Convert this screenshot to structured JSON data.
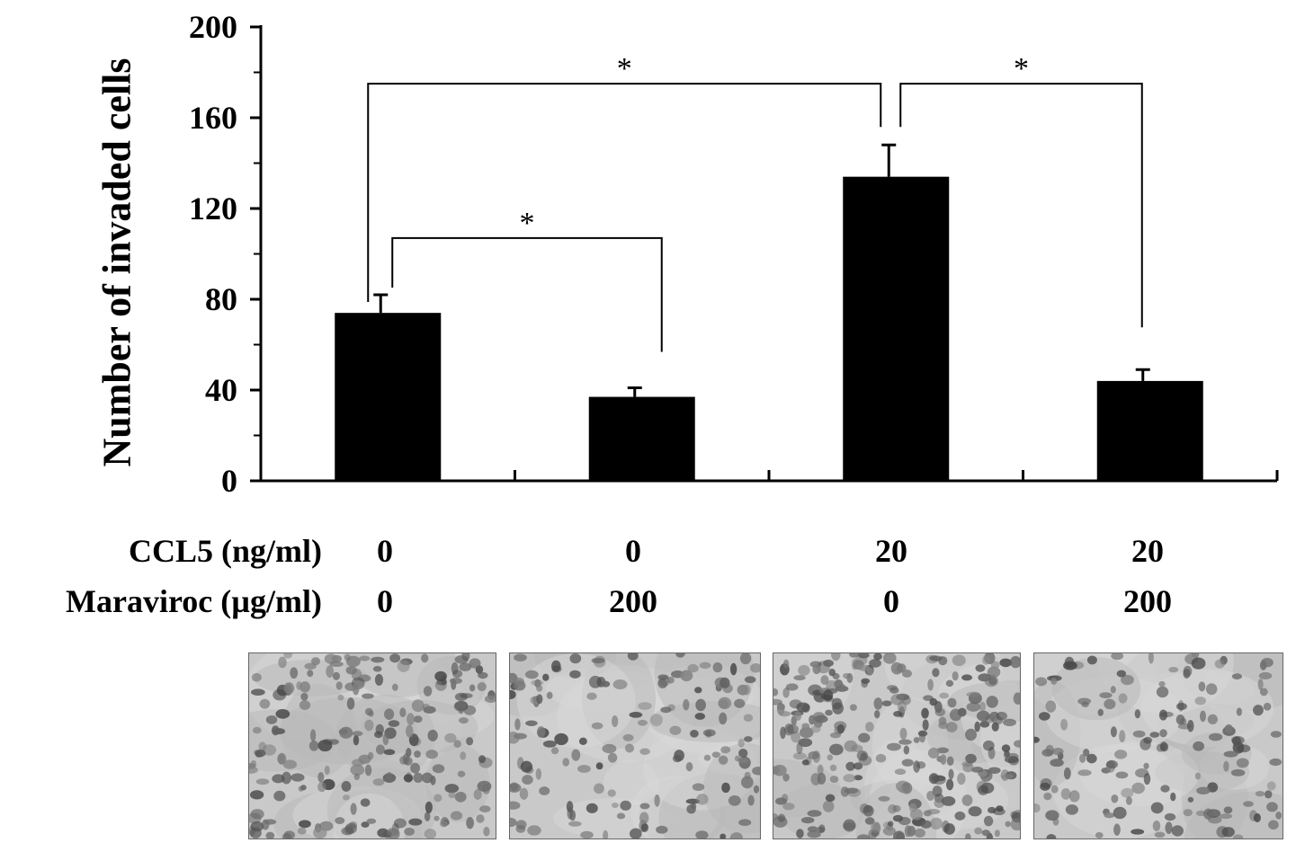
{
  "chart_data": {
    "type": "bar",
    "ylabel": "Number of invaded cells",
    "ylim": [
      0,
      200
    ],
    "yticks": [
      0,
      40,
      80,
      120,
      160,
      200
    ],
    "grid": false,
    "bar_color": "#000000",
    "conditions": {
      "row1_label": "CCL5 (ng/ml)",
      "row2_label": "Maraviroc (µg/ml)",
      "ccl5": [
        "0",
        "0",
        "20",
        "20"
      ],
      "maraviroc": [
        "0",
        "200",
        "0",
        "200"
      ]
    },
    "values": [
      74,
      37,
      134,
      44
    ],
    "errors": [
      8,
      4,
      14,
      5
    ],
    "significance": [
      {
        "from": 0,
        "to": 1,
        "label": "*"
      },
      {
        "from": 0,
        "to": 2,
        "label": "*"
      },
      {
        "from": 2,
        "to": 3,
        "label": "*"
      }
    ]
  },
  "images": [
    {
      "name": "micrograph-ccl5-0-maraviroc-0",
      "density": "medium"
    },
    {
      "name": "micrograph-ccl5-0-maraviroc-200",
      "density": "low"
    },
    {
      "name": "micrograph-ccl5-20-maraviroc-0",
      "density": "high"
    },
    {
      "name": "micrograph-ccl5-20-maraviroc-200",
      "density": "low"
    }
  ]
}
